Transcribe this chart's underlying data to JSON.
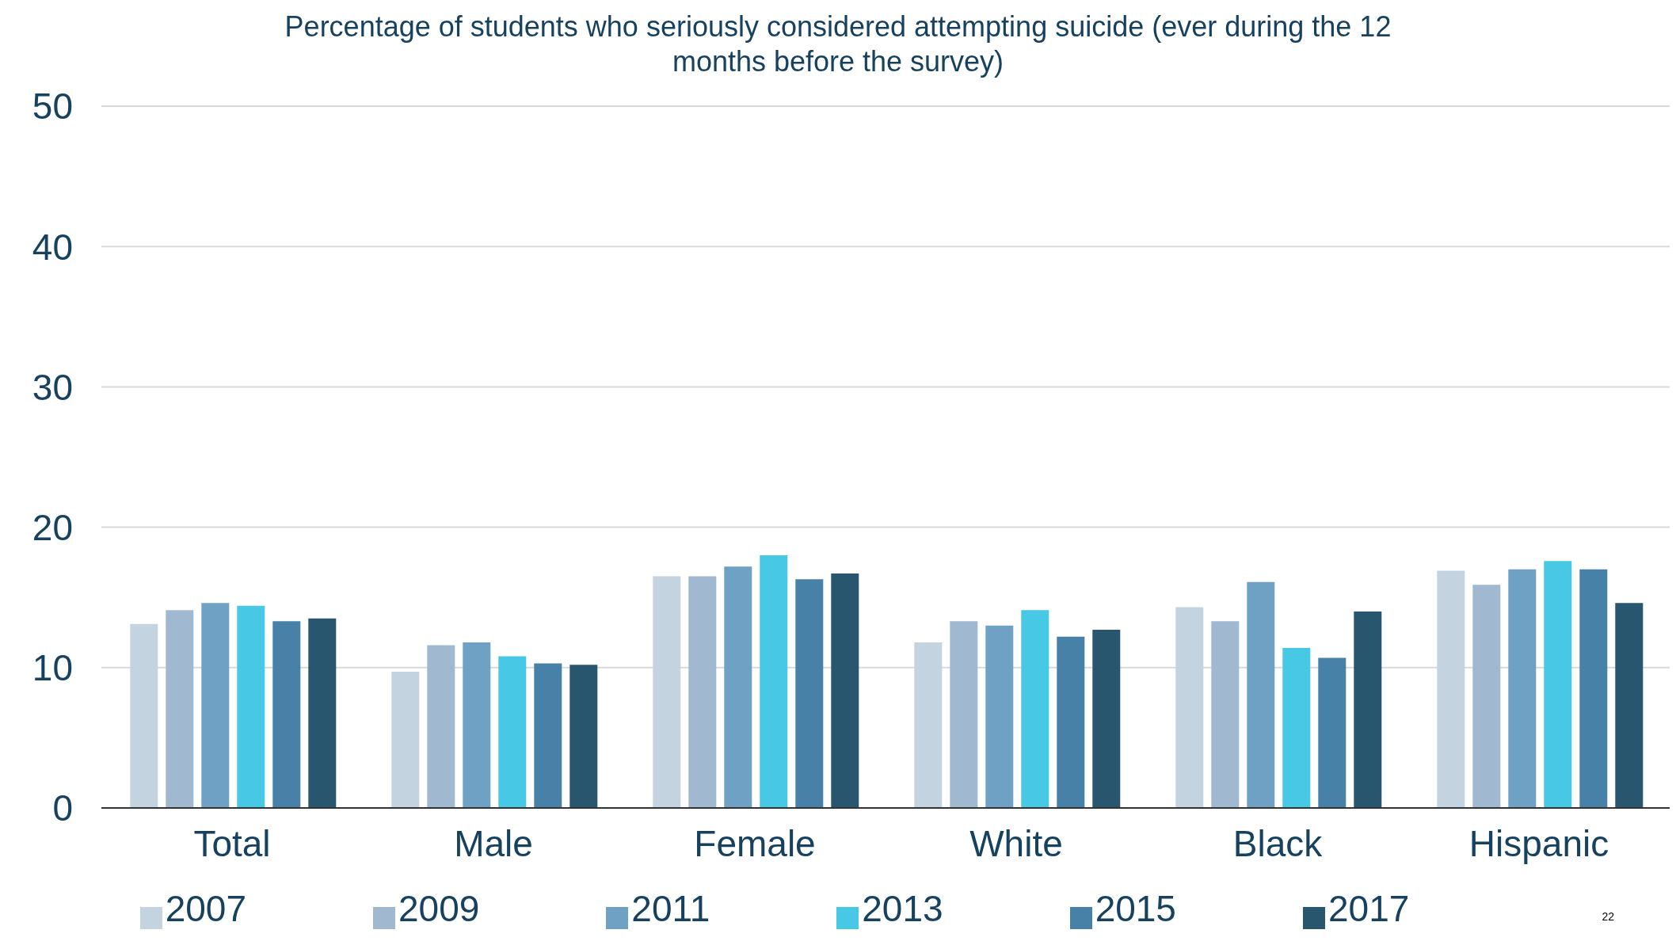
{
  "chart_data": {
    "type": "bar",
    "title": "Percentage of students who seriously considered attempting suicide (ever during the 12 months before the survey)",
    "categories": [
      "Total",
      "Male",
      "Female",
      "White",
      "Black",
      "Hispanic"
    ],
    "series": [
      {
        "name": "2007",
        "color": "#c4d3e0",
        "values": [
          13.1,
          9.7,
          16.5,
          11.8,
          14.3,
          16.9
        ]
      },
      {
        "name": "2009",
        "color": "#a1b9d0",
        "values": [
          14.1,
          11.6,
          16.5,
          13.3,
          13.3,
          15.9
        ]
      },
      {
        "name": "2011",
        "color": "#6fa1c4",
        "values": [
          14.6,
          11.8,
          17.2,
          13.0,
          16.1,
          17.0
        ]
      },
      {
        "name": "2013",
        "color": "#47c8e4",
        "values": [
          14.4,
          10.8,
          18.0,
          14.1,
          11.4,
          17.6
        ]
      },
      {
        "name": "2015",
        "color": "#4781a8",
        "values": [
          13.3,
          10.3,
          16.3,
          12.2,
          10.7,
          17.0
        ]
      },
      {
        "name": "2017",
        "color": "#27566e",
        "values": [
          13.5,
          10.2,
          16.7,
          12.7,
          14.0,
          14.6
        ]
      }
    ],
    "ylim": [
      0,
      50
    ],
    "yticks": [
      0,
      10,
      20,
      30,
      40,
      50
    ],
    "grid": "y",
    "legend": "bottom",
    "annotations": [
      "22"
    ]
  }
}
